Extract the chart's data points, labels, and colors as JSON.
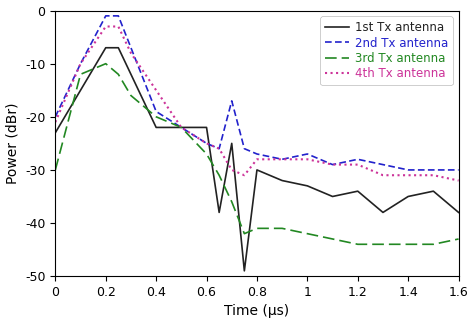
{
  "title": "",
  "xlabel": "Time (μs)",
  "ylabel": "Power (dBr)",
  "xlim": [
    0,
    1.6
  ],
  "ylim": [
    -50,
    0
  ],
  "xticks": [
    0,
    0.2,
    0.4,
    0.6,
    0.8,
    1.0,
    1.2,
    1.4,
    1.6
  ],
  "yticks": [
    0,
    -10,
    -20,
    -30,
    -40,
    -50
  ],
  "antenna1": {
    "x": [
      0.0,
      0.1,
      0.2,
      0.25,
      0.3,
      0.4,
      0.5,
      0.6,
      0.65,
      0.7,
      0.75,
      0.8,
      0.9,
      1.0,
      1.1,
      1.2,
      1.3,
      1.4,
      1.5,
      1.6
    ],
    "y": [
      -23,
      -15,
      -7,
      -7,
      -12,
      -22,
      -22,
      -22,
      -38,
      -25,
      -49,
      -30,
      -32,
      -33,
      -35,
      -34,
      -38,
      -35,
      -34,
      -38
    ],
    "color": "#222222",
    "linestyle": "-",
    "linewidth": 1.2,
    "label": "1st Tx antenna",
    "label_color": "#222222"
  },
  "antenna2": {
    "x": [
      0.0,
      0.1,
      0.2,
      0.25,
      0.3,
      0.4,
      0.5,
      0.6,
      0.65,
      0.7,
      0.75,
      0.8,
      0.9,
      1.0,
      1.1,
      1.2,
      1.3,
      1.4,
      1.5,
      1.6
    ],
    "y": [
      -20,
      -10,
      -1,
      -1,
      -7,
      -19,
      -22,
      -25,
      -26,
      -17,
      -26,
      -27,
      -28,
      -27,
      -29,
      -28,
      -29,
      -30,
      -30,
      -30
    ],
    "color": "#2222cc",
    "linestyle": "--",
    "linewidth": 1.2,
    "label": "2nd Tx antenna",
    "label_color": "#2222cc",
    "dashes": [
      4,
      2
    ]
  },
  "antenna3": {
    "x": [
      0.0,
      0.1,
      0.2,
      0.25,
      0.3,
      0.4,
      0.5,
      0.6,
      0.65,
      0.7,
      0.75,
      0.8,
      0.9,
      1.0,
      1.1,
      1.2,
      1.3,
      1.4,
      1.5,
      1.6
    ],
    "y": [
      -30,
      -12,
      -10,
      -12,
      -16,
      -20,
      -22,
      -27,
      -31,
      -36,
      -42,
      -41,
      -41,
      -42,
      -43,
      -44,
      -44,
      -44,
      -44,
      -43
    ],
    "color": "#228822",
    "linestyle": "--",
    "linewidth": 1.2,
    "label": "3rd Tx antenna",
    "label_color": "#228822",
    "dashes": [
      7,
      3
    ]
  },
  "antenna4": {
    "x": [
      0.0,
      0.1,
      0.2,
      0.25,
      0.3,
      0.4,
      0.5,
      0.6,
      0.65,
      0.7,
      0.75,
      0.8,
      0.9,
      1.0,
      1.1,
      1.2,
      1.3,
      1.4,
      1.5,
      1.6
    ],
    "y": [
      -21,
      -10,
      -3,
      -3,
      -8,
      -15,
      -22,
      -25,
      -26,
      -30,
      -31,
      -28,
      -28,
      -28,
      -29,
      -29,
      -31,
      -31,
      -31,
      -32
    ],
    "color": "#cc3399",
    "linestyle": ":",
    "linewidth": 1.5,
    "label": "4th Tx antenna",
    "label_color": "#cc3399"
  },
  "legend_loc": "upper right",
  "background_color": "#ffffff",
  "tick_fontsize": 9,
  "label_fontsize": 10,
  "legend_fontsize": 8.5
}
